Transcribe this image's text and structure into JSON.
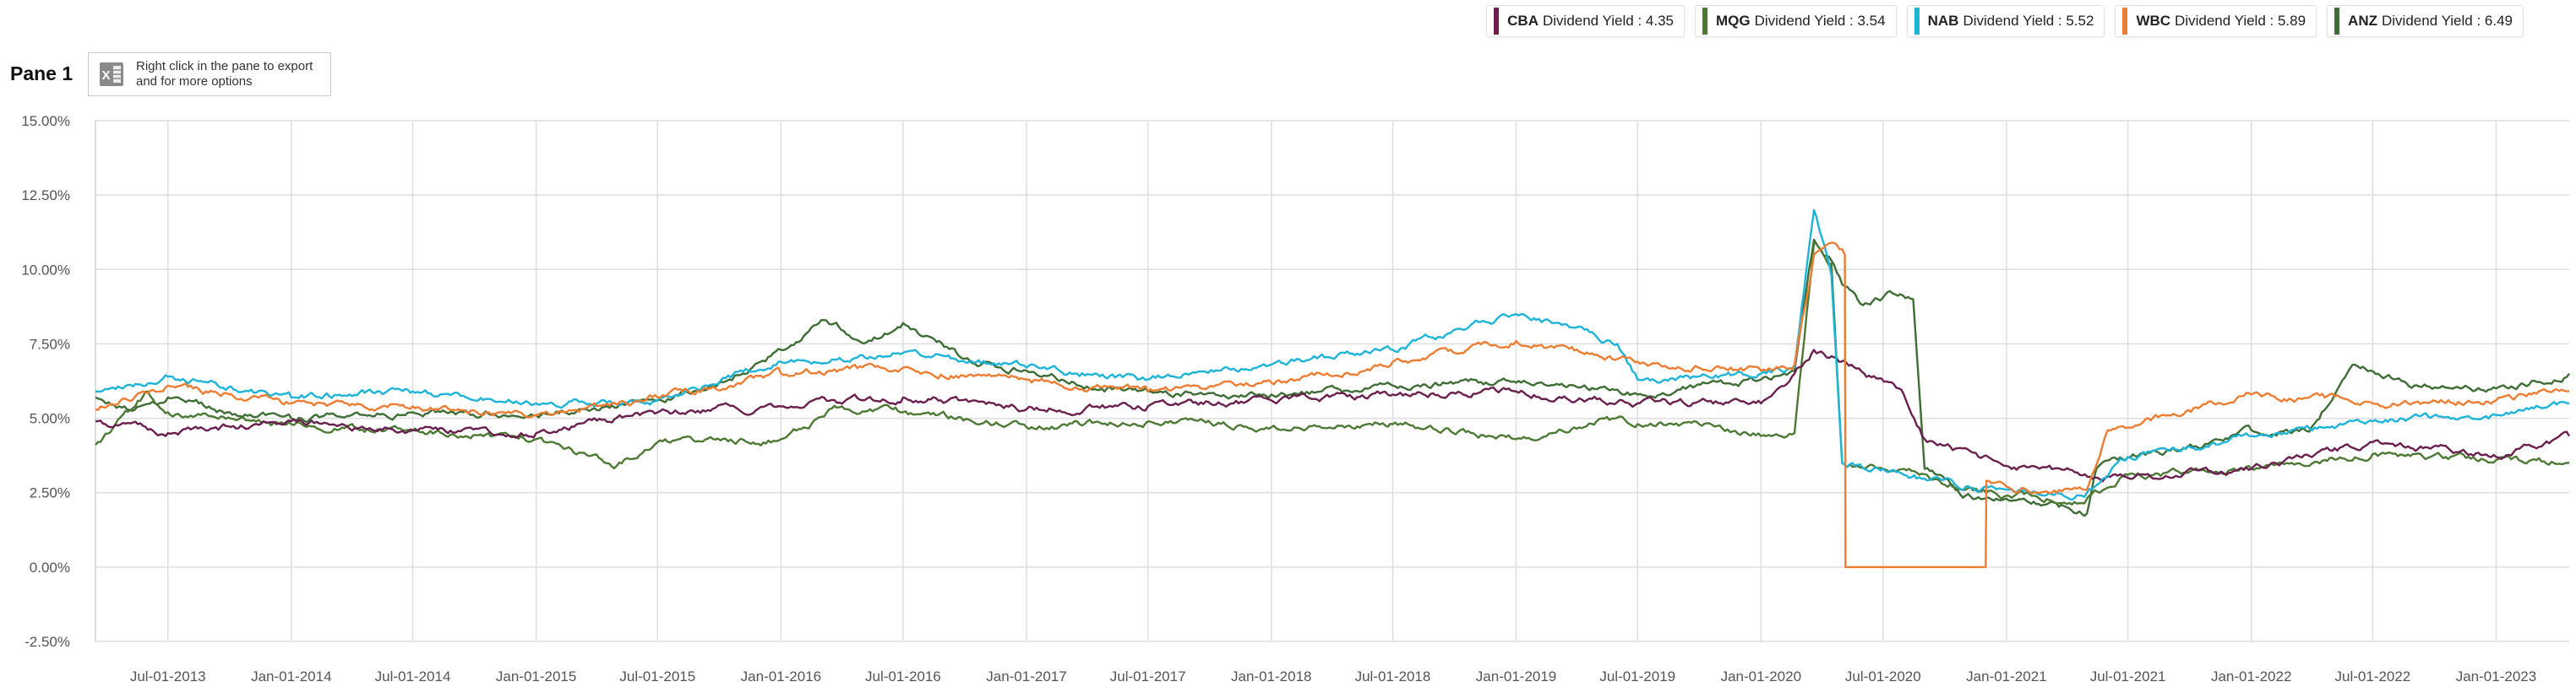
{
  "pane": {
    "title": "Pane 1",
    "export_hint": "Right click in the pane to export and for more options",
    "export_icon": "excel-export-icon"
  },
  "legend": [
    {
      "code": "CBA",
      "label": "Dividend Yield : 4.35",
      "color": "#6b1f4f"
    },
    {
      "code": "MQG",
      "label": "Dividend Yield : 3.54",
      "color": "#4c7a34"
    },
    {
      "code": "NAB",
      "label": "Dividend Yield : 5.52",
      "color": "#1eb4d8"
    },
    {
      "code": "WBC",
      "label": "Dividend Yield : 5.89",
      "color": "#ec7d32"
    },
    {
      "code": "ANZ",
      "label": "Dividend Yield : 6.49",
      "color": "#3e6e36"
    }
  ],
  "chart_data": {
    "type": "line",
    "title": "",
    "xlabel": "",
    "ylabel": "",
    "ylim": [
      -2.5,
      15
    ],
    "xlim": [
      "2013-03-15",
      "2023-04-20"
    ],
    "grid": true,
    "legend_position": "top-right",
    "y_ticks": [
      "15.00%",
      "12.50%",
      "10.00%",
      "7.50%",
      "5.00%",
      "2.50%",
      "0.00%",
      "-2.50%"
    ],
    "y_tick_values": [
      15,
      12.5,
      10,
      7.5,
      5,
      2.5,
      0,
      -2.5
    ],
    "x_ticks": [
      "Jul-01-2013",
      "Jan-01-2014",
      "Jul-01-2014",
      "Jan-01-2015",
      "Jul-01-2015",
      "Jan-01-2016",
      "Jul-01-2016",
      "Jan-01-2017",
      "Jul-01-2017",
      "Jan-01-2018",
      "Jul-01-2018",
      "Jan-01-2019",
      "Jul-01-2019",
      "Jan-01-2020",
      "Jul-01-2020",
      "Jan-01-2021",
      "Jul-01-2021",
      "Jan-01-2022",
      "Jul-01-2022",
      "Jan-01-2023"
    ],
    "x_tick_values": [
      "2013-07-01",
      "2014-01-01",
      "2014-07-01",
      "2015-01-01",
      "2015-07-01",
      "2016-01-01",
      "2016-07-01",
      "2017-01-01",
      "2017-07-01",
      "2018-01-01",
      "2018-07-01",
      "2019-01-01",
      "2019-07-01",
      "2020-01-01",
      "2020-07-01",
      "2021-01-01",
      "2021-07-01",
      "2022-01-01",
      "2022-07-01",
      "2023-01-01"
    ],
    "series": [
      {
        "name": "ANZ",
        "color": "#3e6e36",
        "points": [
          [
            "2013-03-15",
            5.7
          ],
          [
            "2013-05-01",
            5.3
          ],
          [
            "2013-07-01",
            5.7
          ],
          [
            "2013-10-01",
            5.2
          ],
          [
            "2014-01-01",
            5.0
          ],
          [
            "2014-07-01",
            5.2
          ],
          [
            "2015-01-01",
            5.1
          ],
          [
            "2015-07-01",
            5.6
          ],
          [
            "2015-10-01",
            6.2
          ],
          [
            "2016-01-01",
            7.3
          ],
          [
            "2016-03-01",
            8.3
          ],
          [
            "2016-05-15",
            7.6
          ],
          [
            "2016-07-01",
            8.2
          ],
          [
            "2016-10-01",
            7.0
          ],
          [
            "2017-01-01",
            6.6
          ],
          [
            "2017-05-01",
            6.0
          ],
          [
            "2017-07-01",
            5.9
          ],
          [
            "2018-01-01",
            5.8
          ],
          [
            "2018-07-01",
            6.1
          ],
          [
            "2019-01-01",
            6.2
          ],
          [
            "2019-07-01",
            5.8
          ],
          [
            "2020-01-01",
            6.3
          ],
          [
            "2020-02-20",
            6.6
          ],
          [
            "2020-03-20",
            11.0
          ],
          [
            "2020-04-15",
            10.3
          ],
          [
            "2020-05-01",
            9.5
          ],
          [
            "2020-06-01",
            8.8
          ],
          [
            "2020-07-15",
            9.2
          ],
          [
            "2020-08-15",
            9.0
          ],
          [
            "2020-09-01",
            3.3
          ],
          [
            "2020-11-01",
            2.4
          ],
          [
            "2021-01-01",
            2.3
          ],
          [
            "2021-03-01",
            2.1
          ],
          [
            "2021-05-01",
            1.8
          ],
          [
            "2021-05-15",
            3.3
          ],
          [
            "2021-07-01",
            3.7
          ],
          [
            "2021-11-01",
            4.2
          ],
          [
            "2022-01-01",
            4.6
          ],
          [
            "2022-04-01",
            4.7
          ],
          [
            "2022-06-01",
            6.8
          ],
          [
            "2022-09-01",
            6.1
          ],
          [
            "2023-01-01",
            6.0
          ],
          [
            "2023-04-20",
            6.5
          ]
        ]
      },
      {
        "name": "MQG",
        "color": "#4c7a34",
        "points": [
          [
            "2013-03-15",
            4.1
          ],
          [
            "2013-06-01",
            5.9
          ],
          [
            "2013-07-01",
            5.2
          ],
          [
            "2014-01-01",
            4.8
          ],
          [
            "2014-07-01",
            4.6
          ],
          [
            "2015-01-01",
            4.3
          ],
          [
            "2015-05-01",
            3.4
          ],
          [
            "2015-07-01",
            4.2
          ],
          [
            "2016-01-01",
            4.3
          ],
          [
            "2016-04-01",
            5.4
          ],
          [
            "2016-07-01",
            5.2
          ],
          [
            "2017-01-01",
            4.7
          ],
          [
            "2017-07-01",
            4.9
          ],
          [
            "2018-01-01",
            4.7
          ],
          [
            "2018-07-01",
            4.8
          ],
          [
            "2019-01-01",
            4.3
          ],
          [
            "2019-05-01",
            4.9
          ],
          [
            "2019-10-01",
            4.8
          ],
          [
            "2020-01-01",
            4.4
          ],
          [
            "2020-02-20",
            4.5
          ],
          [
            "2020-03-20",
            10.9
          ],
          [
            "2020-04-15",
            10.2
          ],
          [
            "2020-05-01",
            3.5
          ],
          [
            "2020-08-01",
            3.3
          ],
          [
            "2020-11-01",
            2.6
          ],
          [
            "2021-01-01",
            2.4
          ],
          [
            "2021-05-01",
            2.3
          ],
          [
            "2021-07-01",
            3.1
          ],
          [
            "2022-01-01",
            3.3
          ],
          [
            "2022-07-01",
            3.8
          ],
          [
            "2023-01-01",
            3.6
          ],
          [
            "2023-04-20",
            3.5
          ]
        ]
      },
      {
        "name": "CBA",
        "color": "#6b1f4f",
        "points": [
          [
            "2013-03-15",
            4.9
          ],
          [
            "2013-07-01",
            4.5
          ],
          [
            "2014-01-01",
            4.9
          ],
          [
            "2014-07-01",
            4.6
          ],
          [
            "2015-01-01",
            4.5
          ],
          [
            "2015-07-01",
            5.2
          ],
          [
            "2016-01-01",
            5.4
          ],
          [
            "2016-07-01",
            5.7
          ],
          [
            "2017-01-01",
            5.3
          ],
          [
            "2017-07-01",
            5.4
          ],
          [
            "2018-01-01",
            5.6
          ],
          [
            "2018-07-01",
            5.8
          ],
          [
            "2019-01-01",
            5.9
          ],
          [
            "2019-07-01",
            5.5
          ],
          [
            "2020-01-01",
            5.5
          ],
          [
            "2020-02-20",
            6.5
          ],
          [
            "2020-03-20",
            7.3
          ],
          [
            "2020-05-15",
            6.8
          ],
          [
            "2020-08-01",
            5.8
          ],
          [
            "2020-09-01",
            4.3
          ],
          [
            "2021-01-01",
            3.4
          ],
          [
            "2021-07-01",
            3.0
          ],
          [
            "2022-01-01",
            3.3
          ],
          [
            "2022-07-01",
            4.2
          ],
          [
            "2023-01-01",
            3.7
          ],
          [
            "2023-04-20",
            4.4
          ]
        ]
      },
      {
        "name": "NAB",
        "color": "#1eb4d8",
        "points": [
          [
            "2013-03-15",
            5.9
          ],
          [
            "2013-07-01",
            6.4
          ],
          [
            "2014-01-01",
            5.7
          ],
          [
            "2014-07-01",
            5.9
          ],
          [
            "2015-01-01",
            5.5
          ],
          [
            "2015-07-01",
            5.6
          ],
          [
            "2016-01-01",
            6.9
          ],
          [
            "2016-07-01",
            7.2
          ],
          [
            "2017-01-01",
            6.7
          ],
          [
            "2017-07-01",
            6.3
          ],
          [
            "2018-01-01",
            6.8
          ],
          [
            "2018-07-01",
            7.3
          ],
          [
            "2019-01-01",
            8.5
          ],
          [
            "2019-06-01",
            7.5
          ],
          [
            "2019-07-01",
            6.3
          ],
          [
            "2020-01-01",
            6.5
          ],
          [
            "2020-02-20",
            6.7
          ],
          [
            "2020-03-20",
            12.0
          ],
          [
            "2020-04-15",
            9.8
          ],
          [
            "2020-05-01",
            3.5
          ],
          [
            "2020-08-01",
            3.1
          ],
          [
            "2020-11-01",
            2.7
          ],
          [
            "2021-01-01",
            2.6
          ],
          [
            "2021-05-01",
            2.5
          ],
          [
            "2021-07-01",
            3.7
          ],
          [
            "2022-01-01",
            4.4
          ],
          [
            "2022-07-01",
            4.9
          ],
          [
            "2023-01-01",
            5.1
          ],
          [
            "2023-04-20",
            5.5
          ]
        ]
      },
      {
        "name": "WBC",
        "color": "#ec7d32",
        "points": [
          [
            "2013-03-15",
            5.3
          ],
          [
            "2013-07-01",
            6.1
          ],
          [
            "2014-01-01",
            5.5
          ],
          [
            "2014-07-01",
            5.4
          ],
          [
            "2015-01-01",
            5.1
          ],
          [
            "2015-07-01",
            5.7
          ],
          [
            "2016-01-01",
            6.5
          ],
          [
            "2016-07-01",
            6.7
          ],
          [
            "2017-01-01",
            6.3
          ],
          [
            "2017-07-01",
            5.9
          ],
          [
            "2018-01-01",
            6.2
          ],
          [
            "2018-07-01",
            6.9
          ],
          [
            "2019-01-01",
            7.6
          ],
          [
            "2019-07-01",
            6.9
          ],
          [
            "2020-01-01",
            6.6
          ],
          [
            "2020-02-20",
            6.8
          ],
          [
            "2020-03-20",
            10.5
          ],
          [
            "2020-04-15",
            10.9
          ],
          [
            "2020-05-05",
            10.5
          ],
          [
            "2020-05-06",
            0.0
          ],
          [
            "2020-12-01",
            0.0
          ],
          [
            "2020-12-02",
            2.9
          ],
          [
            "2021-01-01",
            2.7
          ],
          [
            "2021-05-01",
            2.6
          ],
          [
            "2021-06-01",
            4.6
          ],
          [
            "2022-01-01",
            5.8
          ],
          [
            "2022-07-01",
            5.5
          ],
          [
            "2023-01-01",
            5.6
          ],
          [
            "2023-04-20",
            5.9
          ]
        ]
      }
    ]
  }
}
